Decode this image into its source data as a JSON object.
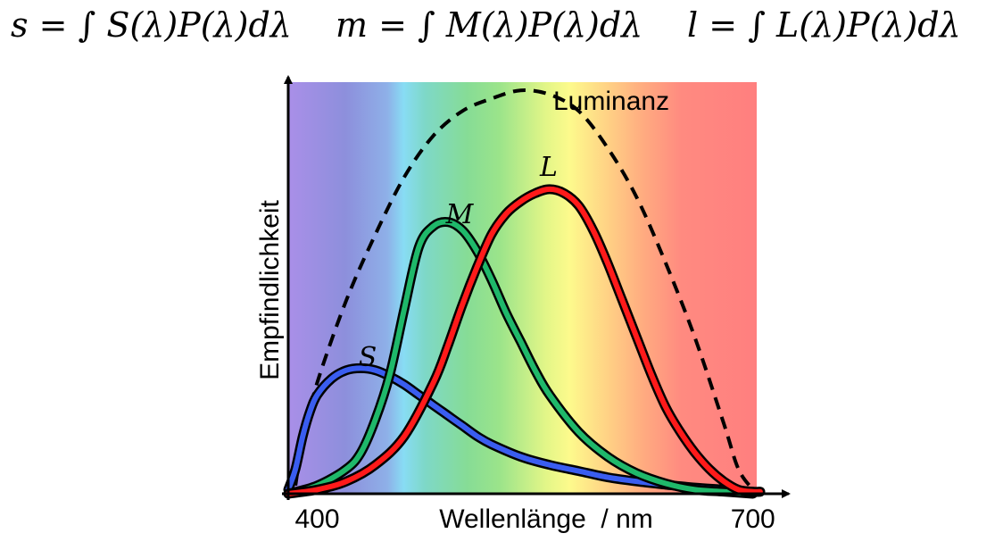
{
  "formulas": {
    "s": "s = ∫ S(λ)P(λ)dλ",
    "m": "m = ∫ M(λ)P(λ)dλ",
    "l": "l = ∫ L(λ)P(λ)dλ"
  },
  "chart_data": {
    "type": "line",
    "xlabel": "Wellenlänge  / nm",
    "ylabel": "Empfindlichkeit",
    "xlim": [
      380,
      710
    ],
    "ylim": [
      0,
      1
    ],
    "x_ticks": [
      {
        "value": 400,
        "label": "400"
      },
      {
        "value": 700,
        "label": "700"
      }
    ],
    "background": "visible spectrum gradient (violet to red)",
    "series": [
      {
        "name": "S",
        "color": "#3a5df0",
        "style": "solid",
        "x": [
          380,
          385,
          390,
          395,
          400,
          410,
          420,
          430,
          440,
          450,
          460,
          470,
          480,
          490,
          500,
          510,
          520,
          540,
          560,
          580,
          600,
          620,
          640,
          660,
          680,
          700,
          705
        ],
        "y": [
          0.01,
          0.06,
          0.14,
          0.2,
          0.24,
          0.28,
          0.3,
          0.305,
          0.3,
          0.285,
          0.265,
          0.24,
          0.215,
          0.19,
          0.165,
          0.14,
          0.12,
          0.09,
          0.07,
          0.055,
          0.04,
          0.03,
          0.022,
          0.015,
          0.01,
          0.005,
          0.005
        ]
      },
      {
        "name": "M",
        "color": "#1fb86a",
        "style": "solid",
        "x": [
          380,
          400,
          420,
          430,
          440,
          450,
          460,
          470,
          480,
          490,
          500,
          510,
          520,
          530,
          540,
          550,
          560,
          580,
          600,
          620,
          640,
          660,
          680,
          700
        ],
        "y": [
          0.0,
          0.02,
          0.06,
          0.1,
          0.18,
          0.29,
          0.45,
          0.6,
          0.65,
          0.66,
          0.64,
          0.59,
          0.52,
          0.44,
          0.37,
          0.3,
          0.24,
          0.15,
          0.09,
          0.05,
          0.025,
          0.01,
          0.005,
          0.0
        ]
      },
      {
        "name": "L",
        "color": "#ff1a1a",
        "style": "solid",
        "x": [
          380,
          400,
          420,
          440,
          460,
          480,
          490,
          500,
          510,
          520,
          530,
          540,
          550,
          560,
          570,
          580,
          590,
          600,
          610,
          620,
          630,
          640,
          650,
          660,
          670,
          680,
          690,
          700,
          705
        ],
        "y": [
          0.0,
          0.01,
          0.03,
          0.07,
          0.14,
          0.27,
          0.36,
          0.46,
          0.55,
          0.63,
          0.68,
          0.71,
          0.73,
          0.74,
          0.73,
          0.7,
          0.64,
          0.56,
          0.47,
          0.38,
          0.29,
          0.21,
          0.15,
          0.1,
          0.06,
          0.03,
          0.01,
          0.005,
          0.005
        ]
      },
      {
        "name": "Luminanz",
        "color": "#000000",
        "style": "dashed",
        "x": [
          385,
          390,
          400,
          420,
          440,
          460,
          480,
          500,
          520,
          540,
          560,
          580,
          600,
          620,
          640,
          660,
          680,
          690,
          700
        ],
        "y": [
          0.02,
          0.13,
          0.27,
          0.47,
          0.63,
          0.77,
          0.87,
          0.93,
          0.96,
          0.98,
          0.97,
          0.93,
          0.84,
          0.72,
          0.56,
          0.38,
          0.17,
          0.06,
          0.01
        ]
      }
    ]
  }
}
